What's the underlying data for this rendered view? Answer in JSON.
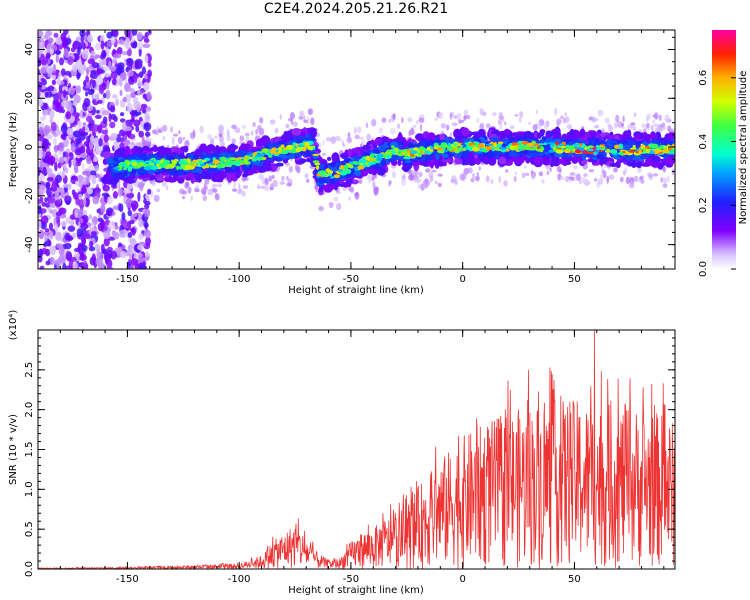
{
  "title": "C2E4.2024.205.21.26.R21",
  "chart_data": [
    {
      "type": "heatmap",
      "name": "spectrogram",
      "xlabel": "Height of straight line (km)",
      "ylabel": "Frequency (Hz)",
      "xlim": [
        -190,
        95
      ],
      "ylim": [
        -50,
        48
      ],
      "xticks": [
        -150,
        -100,
        -50,
        0,
        50
      ],
      "yticks": [
        -40,
        -20,
        0,
        20,
        40
      ],
      "xtick_labels": [
        "-150",
        "-100",
        "-50",
        "0",
        "50"
      ],
      "ytick_labels": [
        "-40",
        "-20",
        "0",
        "20",
        "40"
      ],
      "colorbar": {
        "label": "Normalized spectral amplitude",
        "range": [
          0.0,
          0.75
        ],
        "ticks": [
          0.0,
          0.2,
          0.4,
          0.6
        ],
        "tick_labels": [
          "0.0",
          "0.2",
          "0.4",
          "0.6"
        ]
      },
      "ridge": {
        "x": [
          -185,
          -170,
          -155,
          -140,
          -120,
          -100,
          -80,
          -67,
          -64,
          -55,
          -40,
          -30,
          -25,
          -15,
          0,
          20,
          40,
          60,
          80,
          95
        ],
        "y": [
          -7,
          -6,
          -8,
          -7,
          -7,
          -6,
          -1,
          1,
          -12,
          -10,
          -5,
          -1,
          -3,
          -1,
          0,
          0,
          0,
          -1,
          -1,
          -1
        ],
        "amplitude": [
          0.25,
          0.2,
          0.4,
          0.45,
          0.5,
          0.55,
          0.5,
          0.5,
          0.6,
          0.55,
          0.5,
          0.5,
          0.6,
          0.55,
          0.55,
          0.55,
          0.6,
          0.65,
          0.6,
          0.55
        ]
      },
      "noise_region": {
        "x_from": -190,
        "x_to": -140
      }
    },
    {
      "type": "line",
      "name": "snr",
      "xlabel": "Height of straight line (km)",
      "ylabel": "SNR (10 * v/v)",
      "scale_label": "(x10⁴)",
      "xlim": [
        -190,
        95
      ],
      "ylim": [
        0,
        3.0
      ],
      "xticks": [
        -150,
        -100,
        -50,
        0,
        50
      ],
      "yticks": [
        0.0,
        0.5,
        1.0,
        1.5,
        2.0,
        2.5
      ],
      "xtick_labels": [
        "-150",
        "-100",
        "-50",
        "0",
        "50"
      ],
      "ytick_labels": [
        "0.0",
        "0.5",
        "1.0",
        "1.5",
        "2.0",
        "2.5"
      ],
      "color": "#ee3333",
      "envelope": {
        "x": [
          -190,
          -150,
          -120,
          -100,
          -90,
          -85,
          -80,
          -75,
          -70,
          -65,
          -60,
          -55,
          -50,
          -45,
          -40,
          -35,
          -30,
          -25,
          -20,
          -10,
          0,
          10,
          20,
          30,
          40,
          50,
          60,
          70,
          80,
          90,
          95
        ],
        "y": [
          0.01,
          0.02,
          0.04,
          0.06,
          0.15,
          0.3,
          0.4,
          0.5,
          0.35,
          0.18,
          0.1,
          0.12,
          0.3,
          0.4,
          0.45,
          0.55,
          0.6,
          0.7,
          0.9,
          1.2,
          1.45,
          1.6,
          1.7,
          1.8,
          1.85,
          1.85,
          1.8,
          1.8,
          1.75,
          1.7,
          1.6
        ]
      },
      "peak": {
        "x": 59,
        "y": 3.0
      }
    }
  ]
}
